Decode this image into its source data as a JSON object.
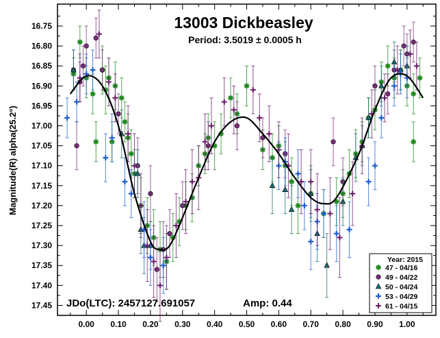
{
  "chart_data": {
    "type": "scatter",
    "title": "13003 Dickbeasley",
    "subtitle": "Period: 3.5019 ± 0.0005 h",
    "ylabel": "Magnitude(R) alpha(25.2°)",
    "xlabel": "",
    "xlim": [
      -0.09,
      1.09
    ],
    "ylim": [
      17.475,
      16.695
    ],
    "y_inverted": true,
    "x_ticks": [
      "0.00",
      "0.10",
      "0.20",
      "0.30",
      "0.40",
      "0.50",
      "0.60",
      "0.70",
      "0.80",
      "0.90",
      "1.00"
    ],
    "x_tick_values": [
      0,
      0.1,
      0.2,
      0.3,
      0.4,
      0.5,
      0.6,
      0.7,
      0.8,
      0.9,
      1.0
    ],
    "y_ticks": [
      "16.75",
      "16.80",
      "16.85",
      "16.90",
      "16.95",
      "17.00",
      "17.05",
      "17.10",
      "17.15",
      "17.20",
      "17.25",
      "17.30",
      "17.35",
      "17.40",
      "17.45"
    ],
    "y_tick_values": [
      16.75,
      16.8,
      16.85,
      16.9,
      16.95,
      17.0,
      17.05,
      17.1,
      17.15,
      17.2,
      17.25,
      17.3,
      17.35,
      17.4,
      17.45
    ],
    "annotations": {
      "jd": "JDo(LTC): 2457127.691057",
      "amp": "Amp: 0.44"
    },
    "legend": {
      "position": "bottom-right",
      "title": "Year: 2015"
    },
    "fit_curve": {
      "color": "#000000",
      "points": [
        [
          -0.05,
          16.92
        ],
        [
          0.0,
          16.875
        ],
        [
          0.05,
          16.9
        ],
        [
          0.1,
          17.0
        ],
        [
          0.15,
          17.17
        ],
        [
          0.2,
          17.29
        ],
        [
          0.23,
          17.31
        ],
        [
          0.26,
          17.3
        ],
        [
          0.3,
          17.23
        ],
        [
          0.35,
          17.13
        ],
        [
          0.4,
          17.04
        ],
        [
          0.45,
          16.99
        ],
        [
          0.5,
          16.98
        ],
        [
          0.55,
          17.02
        ],
        [
          0.6,
          17.07
        ],
        [
          0.65,
          17.13
        ],
        [
          0.7,
          17.18
        ],
        [
          0.74,
          17.195
        ],
        [
          0.78,
          17.18
        ],
        [
          0.85,
          17.07
        ],
        [
          0.9,
          16.96
        ],
        [
          0.95,
          16.88
        ],
        [
          1.0,
          16.875
        ],
        [
          1.05,
          16.93
        ]
      ]
    },
    "series": [
      {
        "name": "47 - 04/16",
        "marker": "asterisk",
        "color": "#1f8a1f",
        "points": [
          [
            -0.04,
            16.87,
            0.04
          ],
          [
            -0.02,
            16.79,
            0.04
          ],
          [
            0.0,
            16.88,
            0.05
          ],
          [
            0.02,
            16.92,
            0.05
          ],
          [
            0.03,
            17.04,
            0.05
          ],
          [
            0.05,
            16.86,
            0.06
          ],
          [
            0.06,
            16.91,
            0.06
          ],
          [
            0.07,
            16.88,
            0.05
          ],
          [
            0.08,
            17.04,
            0.05
          ],
          [
            0.09,
            16.9,
            0.06
          ],
          [
            0.11,
            16.93,
            0.05
          ],
          [
            0.12,
            16.99,
            0.05
          ],
          [
            0.13,
            17.03,
            0.06
          ],
          [
            0.14,
            17.07,
            0.06
          ],
          [
            0.15,
            17.12,
            0.06
          ],
          [
            0.17,
            17.2,
            0.07
          ],
          [
            0.19,
            17.25,
            0.07
          ],
          [
            0.21,
            17.28,
            0.07
          ],
          [
            0.23,
            17.31,
            0.07
          ],
          [
            0.25,
            17.34,
            0.07
          ],
          [
            0.27,
            17.28,
            0.06
          ],
          [
            0.29,
            17.24,
            0.06
          ],
          [
            0.31,
            17.2,
            0.06
          ],
          [
            0.33,
            17.18,
            0.06
          ],
          [
            0.35,
            17.1,
            0.05
          ],
          [
            0.37,
            17.07,
            0.05
          ],
          [
            0.38,
            17.03,
            0.06
          ],
          [
            0.4,
            17.05,
            0.06
          ],
          [
            0.42,
            17.02,
            0.05
          ],
          [
            0.45,
            16.93,
            0.05
          ],
          [
            0.47,
            16.97,
            0.05
          ],
          [
            0.5,
            16.9,
            0.05
          ],
          [
            0.55,
            17.06,
            0.05
          ],
          [
            0.58,
            17.08,
            0.06
          ],
          [
            0.6,
            17.05,
            0.05
          ],
          [
            0.62,
            17.1,
            0.06
          ],
          [
            0.64,
            17.14,
            0.06
          ],
          [
            0.66,
            17.2,
            0.07
          ],
          [
            0.7,
            17.17,
            0.07
          ],
          [
            0.74,
            17.22,
            0.06
          ],
          [
            0.78,
            17.19,
            0.06
          ],
          [
            0.8,
            17.17,
            0.06
          ],
          [
            0.82,
            17.12,
            0.06
          ],
          [
            0.84,
            17.07,
            0.06
          ],
          [
            0.86,
            17.04,
            0.05
          ],
          [
            0.88,
            16.98,
            0.05
          ],
          [
            0.9,
            16.96,
            0.05
          ],
          [
            0.92,
            16.89,
            0.05
          ],
          [
            0.94,
            16.85,
            0.05
          ],
          [
            0.96,
            16.88,
            0.05
          ],
          [
            0.98,
            16.86,
            0.05
          ],
          [
            1.0,
            16.9,
            0.05
          ],
          [
            1.02,
            16.92,
            0.05
          ],
          [
            1.02,
            17.04,
            0.05
          ],
          [
            1.04,
            16.88,
            0.05
          ]
        ]
      },
      {
        "name": "49 - 04/22",
        "marker": "circle",
        "color": "#7b2c7b",
        "points": [
          [
            -0.04,
            16.86,
            0.05
          ],
          [
            -0.02,
            16.89,
            0.05
          ],
          [
            -0.01,
            16.85,
            0.05
          ],
          [
            0.0,
            16.8,
            0.05
          ],
          [
            0.03,
            16.78,
            0.05
          ],
          [
            0.05,
            16.86,
            0.05
          ],
          [
            -0.03,
            17.05,
            0.06
          ],
          [
            0.1,
            16.97,
            0.05
          ],
          [
            0.16,
            17.1,
            0.07
          ],
          [
            0.2,
            17.17,
            0.07
          ],
          [
            0.22,
            17.36,
            0.08
          ],
          [
            0.24,
            17.31,
            0.07
          ],
          [
            0.26,
            17.27,
            0.06
          ],
          [
            0.3,
            17.2,
            0.06
          ],
          [
            0.38,
            17.05,
            0.06
          ],
          [
            0.47,
            17.0,
            0.06
          ],
          [
            0.55,
            17.03,
            0.05
          ],
          [
            0.62,
            17.07,
            0.06
          ],
          [
            0.77,
            17.04,
            0.06
          ],
          [
            0.8,
            17.14,
            0.06
          ],
          [
            0.9,
            16.9,
            0.05
          ],
          [
            0.94,
            16.92,
            0.05
          ],
          [
            0.96,
            16.86,
            0.05
          ],
          [
            0.99,
            16.8,
            0.05
          ],
          [
            1.0,
            16.82,
            0.05
          ],
          [
            1.02,
            16.79,
            0.05
          ]
        ]
      },
      {
        "name": "50 - 04/24",
        "marker": "triangle",
        "color": "#1a6b6b",
        "points": [
          [
            -0.04,
            16.86,
            0.05
          ],
          [
            0.11,
            17.02,
            0.06
          ],
          [
            0.16,
            17.12,
            0.06
          ],
          [
            0.17,
            17.26,
            0.06
          ],
          [
            0.18,
            17.3,
            0.07
          ],
          [
            0.2,
            17.3,
            0.06
          ],
          [
            0.58,
            17.15,
            0.07
          ],
          [
            0.62,
            17.16,
            0.06
          ],
          [
            0.64,
            17.21,
            0.06
          ],
          [
            0.7,
            17.17,
            0.06
          ],
          [
            0.72,
            17.27,
            0.07
          ],
          [
            0.75,
            17.35,
            0.08
          ],
          [
            0.8,
            17.19,
            0.06
          ],
          [
            0.84,
            17.08,
            0.06
          ],
          [
            0.86,
            17.05,
            0.05
          ],
          [
            0.88,
            16.98,
            0.05
          ],
          [
            0.92,
            16.9,
            0.05
          ],
          [
            0.96,
            16.84,
            0.05
          ],
          [
            0.98,
            16.86,
            0.05
          ],
          [
            1.0,
            16.85,
            0.05
          ]
        ]
      },
      {
        "name": "53 - 04/29",
        "marker": "plus",
        "color": "#1f5fd6",
        "points": [
          [
            -0.06,
            16.98,
            0.05
          ],
          [
            -0.03,
            16.94,
            0.05
          ],
          [
            0.0,
            16.87,
            0.05
          ],
          [
            0.02,
            16.86,
            0.05
          ],
          [
            0.06,
            17.08,
            0.06
          ],
          [
            0.08,
            17.03,
            0.06
          ],
          [
            0.12,
            17.14,
            0.06
          ],
          [
            0.14,
            17.17,
            0.06
          ],
          [
            0.18,
            17.26,
            0.07
          ],
          [
            0.2,
            17.33,
            0.07
          ],
          [
            0.24,
            17.35,
            0.07
          ],
          [
            0.6,
            17.1,
            0.06
          ],
          [
            0.62,
            17.09,
            0.06
          ],
          [
            0.66,
            17.12,
            0.06
          ],
          [
            0.68,
            17.2,
            0.06
          ],
          [
            0.7,
            17.29,
            0.07
          ],
          [
            0.72,
            17.24,
            0.07
          ],
          [
            0.74,
            17.22,
            0.06
          ],
          [
            0.78,
            17.27,
            0.07
          ],
          [
            0.82,
            17.26,
            0.07
          ],
          [
            0.88,
            17.14,
            0.06
          ],
          [
            0.9,
            17.1,
            0.06
          ],
          [
            0.92,
            16.98,
            0.05
          ],
          [
            0.96,
            16.9,
            0.05
          ],
          [
            0.98,
            16.87,
            0.05
          ],
          [
            1.0,
            16.88,
            0.05
          ]
        ]
      },
      {
        "name": "61 - 04/15",
        "marker": "cross",
        "color": "#6a1a6a",
        "points": [
          [
            -0.02,
            16.88,
            0.06
          ],
          [
            0.04,
            16.77,
            0.06
          ],
          [
            0.07,
            16.89,
            0.06
          ],
          [
            0.09,
            16.93,
            0.06
          ],
          [
            0.13,
            17.02,
            0.07
          ],
          [
            0.15,
            17.1,
            0.08
          ],
          [
            0.17,
            17.2,
            0.08
          ],
          [
            0.19,
            17.3,
            0.09
          ],
          [
            0.21,
            17.34,
            0.09
          ],
          [
            0.23,
            17.4,
            0.09
          ],
          [
            0.25,
            17.33,
            0.08
          ],
          [
            0.28,
            17.25,
            0.08
          ],
          [
            0.31,
            17.19,
            0.08
          ],
          [
            0.33,
            17.14,
            0.08
          ],
          [
            0.35,
            17.13,
            0.08
          ],
          [
            0.37,
            17.04,
            0.07
          ],
          [
            0.39,
            17.0,
            0.07
          ],
          [
            0.43,
            16.94,
            0.06
          ],
          [
            0.46,
            16.96,
            0.06
          ],
          [
            0.52,
            16.91,
            0.06
          ],
          [
            0.54,
            16.98,
            0.06
          ],
          [
            0.57,
            17.02,
            0.07
          ],
          [
            0.6,
            17.06,
            0.07
          ],
          [
            0.63,
            17.1,
            0.08
          ],
          [
            0.67,
            17.14,
            0.08
          ],
          [
            0.7,
            17.14,
            0.08
          ],
          [
            0.72,
            17.21,
            0.09
          ],
          [
            0.76,
            17.22,
            0.09
          ],
          [
            0.79,
            17.28,
            0.1
          ],
          [
            0.83,
            17.17,
            0.08
          ],
          [
            0.86,
            17.05,
            0.07
          ],
          [
            0.89,
            16.97,
            0.06
          ],
          [
            0.93,
            16.93,
            0.06
          ],
          [
            0.97,
            16.86,
            0.06
          ],
          [
            1.01,
            16.82,
            0.06
          ],
          [
            1.03,
            16.85,
            0.06
          ]
        ]
      }
    ]
  }
}
